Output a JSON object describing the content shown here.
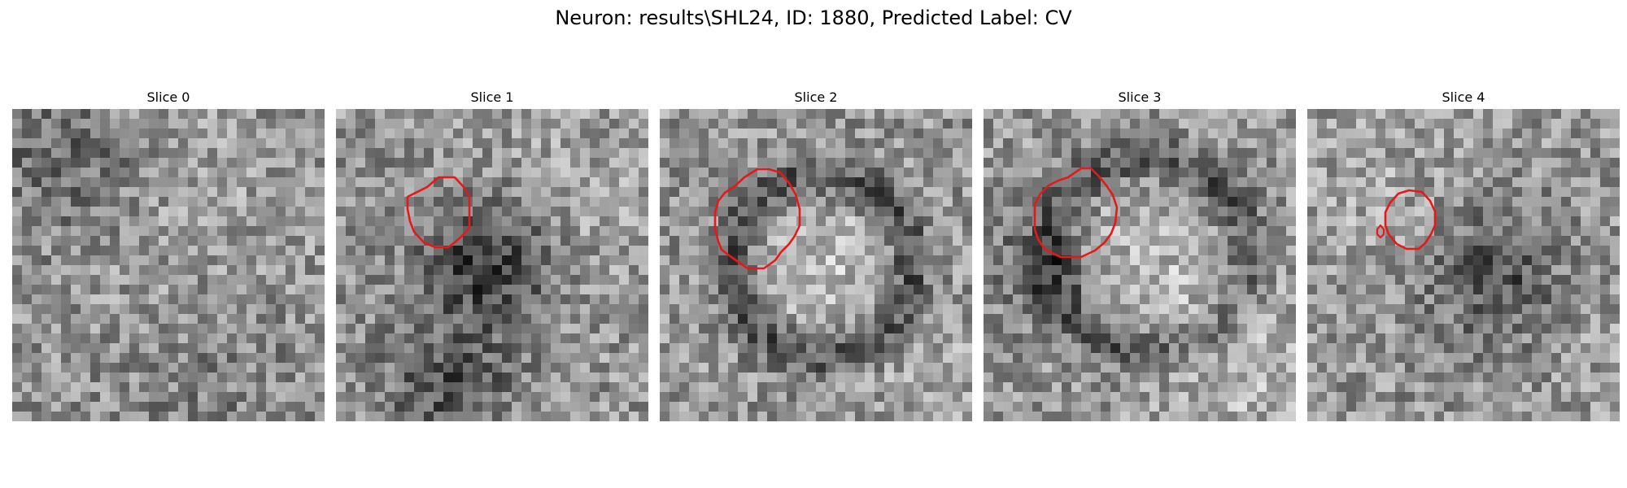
{
  "figure": {
    "title": "Neuron: results\\SHL24, ID: 1880, Predicted Label: CV",
    "colormap": "gray",
    "contour_color": "#e31a1c",
    "slices": [
      {
        "label": "Slice 0",
        "pattern": "noisy background with darker top-left patch and mid-gray texture",
        "contours": []
      },
      {
        "label": "Slice 1",
        "pattern": "dark filled blob at center with lighter surrounding noise",
        "contours": [
          "closed red contour around the dark central blob"
        ]
      },
      {
        "label": "Slice 2",
        "pattern": "dark ring with bright center",
        "contours": [
          "closed red contour around ring-shaped vesicle"
        ]
      },
      {
        "label": "Slice 3",
        "pattern": "dark ring with bright center, slightly larger",
        "contours": [
          "closed red contour around ring-shaped vesicle"
        ]
      },
      {
        "label": "Slice 4",
        "pattern": "smaller dark blob, plus tiny separate contour at left",
        "contours": [
          "closed red contour around the dark blob",
          "small red loop to the left"
        ]
      }
    ]
  }
}
